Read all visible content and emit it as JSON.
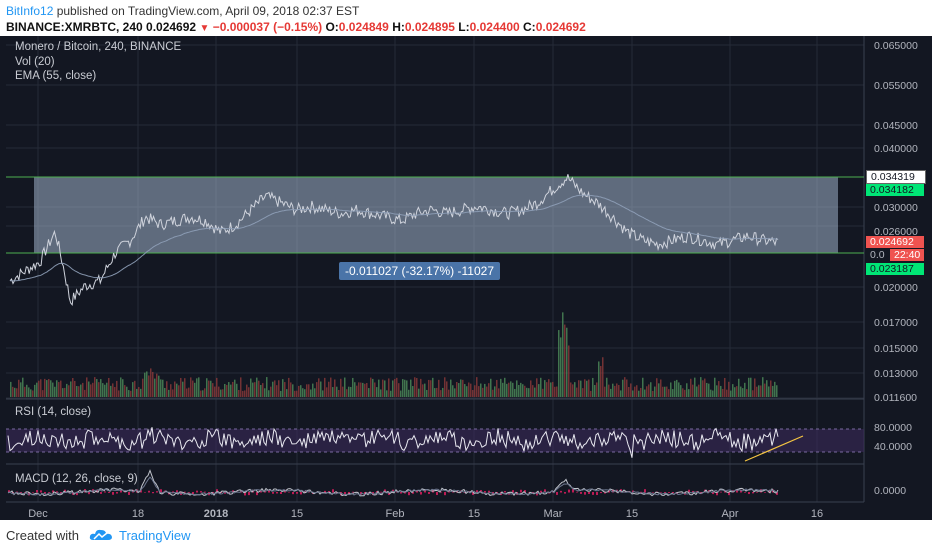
{
  "header": {
    "username": "BitInfo12",
    "published_text": " published on TradingView.com, April 09, 2018 02:37 EST",
    "symbol": "BINANCE:XMRBTC, 240",
    "last_price": "0.024692",
    "change": "−0.000037 (−0.15%)",
    "open_label": "O:",
    "open": "0.024849",
    "high_label": "H:",
    "high": "0.024895",
    "low_label": "L:",
    "low": "0.024400",
    "close_label": "C:",
    "close": "0.024692"
  },
  "legend": {
    "title": "Monero / Bitcoin, 240, BINANCE",
    "volume": "Vol (20)",
    "ema": "EMA (55, close)",
    "rsi": "RSI (14, close)",
    "macd": "MACD (12, 26, close, 9)"
  },
  "measure_label": "-0.011027 (-32.17%) -11027",
  "price_axis": [
    "0.065000",
    "0.055000",
    "0.045000",
    "0.040000",
    "0.030000",
    "0.026000",
    "0.020000",
    "0.017000",
    "0.015000",
    "0.013000",
    "0.011600"
  ],
  "price_tags": {
    "top": "0.034319",
    "upper_green": "0.034182",
    "current": "0.024692",
    "countdown": "22:40",
    "countdown_prefix": "0.0",
    "lower_green": "0.023187"
  },
  "rsi_axis": [
    "80.0000",
    "40.0000"
  ],
  "macd_axis": [
    "0.0000"
  ],
  "time_axis": [
    "Dec",
    "18",
    "2018",
    "15",
    "Feb",
    "15",
    "Mar",
    "15",
    "Apr",
    "16"
  ],
  "footer": {
    "created_with": "Created with",
    "brand": "TradingView"
  },
  "colors": {
    "background": "#131722",
    "accent_blue": "#2196f3",
    "negative": "#e53935",
    "positive_tag": "#00e676",
    "range_box": "#9fb0c8",
    "rsi_line": "#e8e8f0",
    "trend_line": "#f5c542"
  },
  "chart_data": {
    "type": "line",
    "title": "Monero / Bitcoin, 240, BINANCE",
    "x_labels": [
      "Dec",
      "18",
      "2018",
      "15",
      "Feb",
      "15",
      "Mar",
      "15",
      "Apr",
      "16"
    ],
    "price_series_approx": [
      0.0205,
      0.0215,
      0.0225,
      0.026,
      0.0185,
      0.02,
      0.0205,
      0.0235,
      0.025,
      0.028,
      0.027,
      0.0275,
      0.028,
      0.0275,
      0.026,
      0.027,
      0.029,
      0.031,
      0.03,
      0.029,
      0.0295,
      0.029,
      0.0285,
      0.029,
      0.0285,
      0.028,
      0.0275,
      0.0285,
      0.029,
      0.0285,
      0.029,
      0.0295,
      0.029,
      0.0285,
      0.029,
      0.03,
      0.032,
      0.034,
      0.0315,
      0.03,
      0.028,
      0.026,
      0.025,
      0.0245,
      0.025,
      0.0255,
      0.025,
      0.0245,
      0.025,
      0.0255,
      0.025,
      0.0247
    ],
    "range_high": 0.034319,
    "range_low": 0.023187,
    "ema_period": 55,
    "rsi_period": 14,
    "rsi_levels": [
      80,
      40
    ],
    "macd_params": [
      12,
      26,
      9
    ]
  }
}
